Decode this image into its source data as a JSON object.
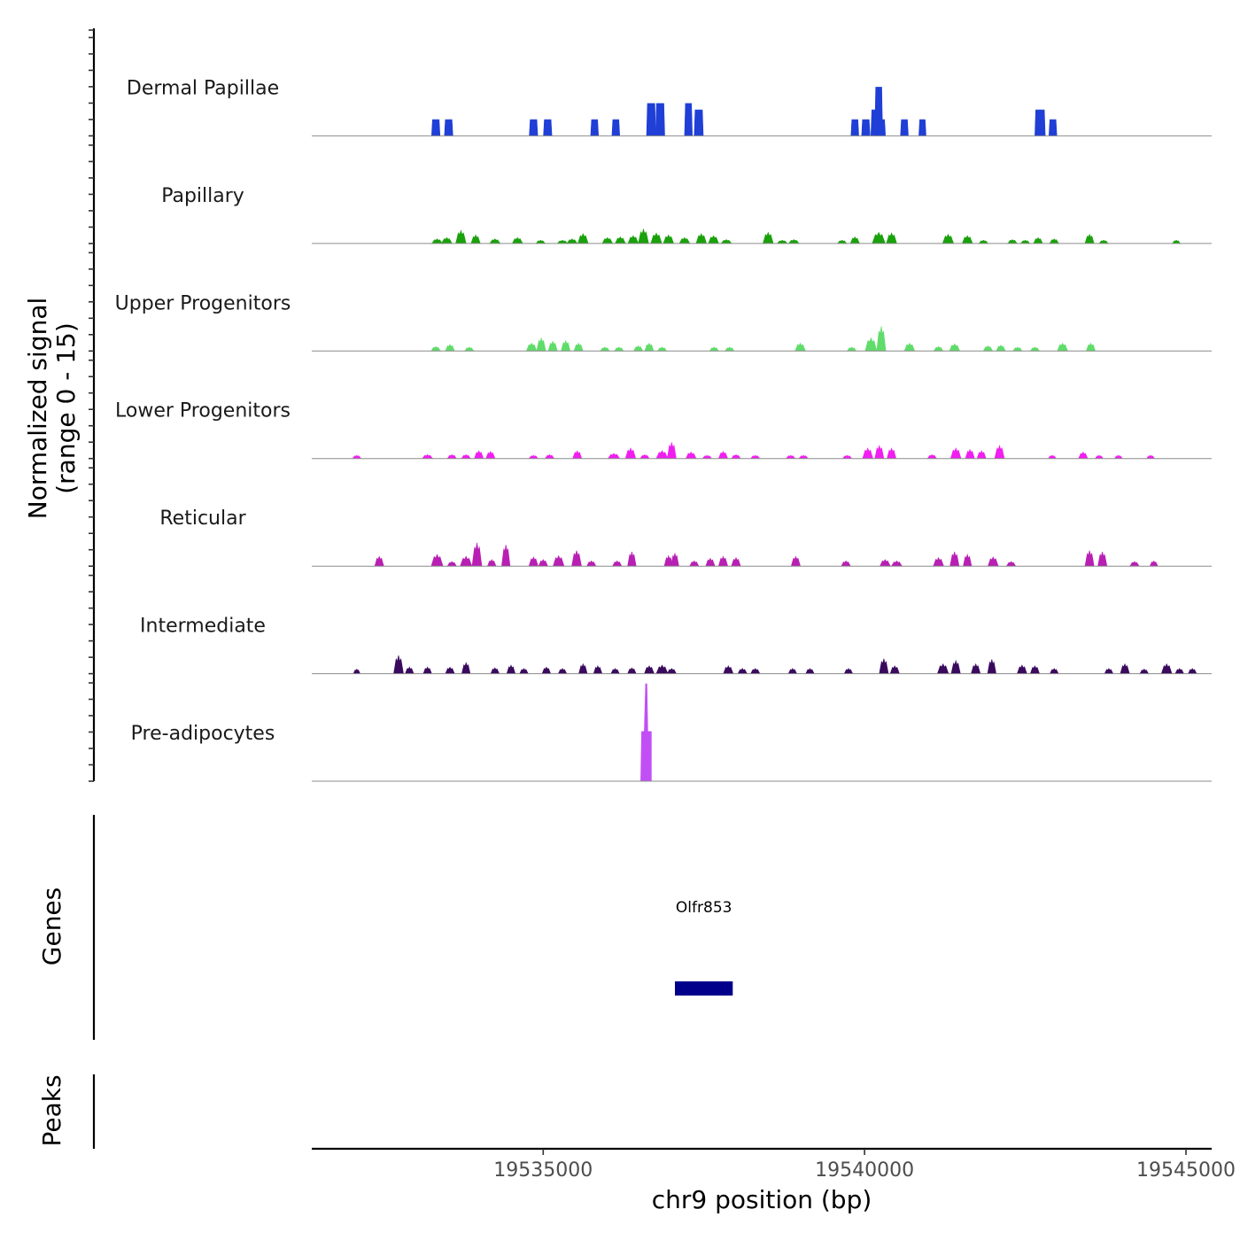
{
  "chart_data": {
    "type": "area",
    "title": "",
    "ylabel": "Normalized signal",
    "ylabel_range": "(range 0 - 15)",
    "xlabel": "chr9 position (bp)",
    "ylim": [
      0,
      15
    ],
    "xlim": [
      19531400,
      19545400
    ],
    "x_ticks": [
      {
        "value": 19535000,
        "label": "19535000"
      },
      {
        "value": 19540000,
        "label": "19540000"
      },
      {
        "value": 19545000,
        "label": "19545000"
      }
    ],
    "tracks": [
      {
        "name": "Dermal Papillae",
        "color": "#1f3fd6",
        "mode": "blocky",
        "peaks": [
          [
            19533330,
            2.5,
            90
          ],
          [
            19533530,
            2.5,
            90
          ],
          [
            19534850,
            2.5,
            90
          ],
          [
            19535070,
            2.5,
            90
          ],
          [
            19535800,
            2.5,
            80
          ],
          [
            19536130,
            2.5,
            80
          ],
          [
            19536680,
            5,
            100
          ],
          [
            19536820,
            5,
            100
          ],
          [
            19537260,
            5,
            80
          ],
          [
            19537420,
            4,
            100
          ],
          [
            19539850,
            2.5,
            80
          ],
          [
            19540020,
            2.5,
            90
          ],
          [
            19540220,
            7.5,
            80
          ],
          [
            19540150,
            4,
            60
          ],
          [
            19540260,
            2.5,
            90
          ],
          [
            19540620,
            2.5,
            80
          ],
          [
            19540900,
            2.5,
            70
          ],
          [
            19542730,
            4,
            120
          ],
          [
            19542930,
            2.5,
            80
          ]
        ]
      },
      {
        "name": "Papillary",
        "color": "#1aa10c",
        "mode": "smooth",
        "peaks": [
          [
            19533350,
            0.7,
            120
          ],
          [
            19533500,
            0.9,
            120
          ],
          [
            19533720,
            2,
            120
          ],
          [
            19533950,
            1.3,
            100
          ],
          [
            19534250,
            0.7,
            120
          ],
          [
            19534600,
            0.9,
            120
          ],
          [
            19534960,
            0.5,
            100
          ],
          [
            19535300,
            0.5,
            120
          ],
          [
            19535450,
            0.7,
            120
          ],
          [
            19535620,
            1.5,
            120
          ],
          [
            19536000,
            0.9,
            120
          ],
          [
            19536200,
            1,
            120
          ],
          [
            19536400,
            1.2,
            120
          ],
          [
            19536560,
            2.2,
            120
          ],
          [
            19536760,
            1.6,
            130
          ],
          [
            19536950,
            1.3,
            120
          ],
          [
            19537200,
            0.9,
            120
          ],
          [
            19537460,
            1.5,
            120
          ],
          [
            19537650,
            1.2,
            120
          ],
          [
            19537850,
            0.6,
            120
          ],
          [
            19538500,
            1.7,
            120
          ],
          [
            19538720,
            0.5,
            120
          ],
          [
            19538900,
            0.6,
            120
          ],
          [
            19539650,
            0.5,
            100
          ],
          [
            19539850,
            1,
            100
          ],
          [
            19540220,
            1.7,
            160
          ],
          [
            19540420,
            1.6,
            120
          ],
          [
            19541300,
            1.4,
            130
          ],
          [
            19541600,
            1.2,
            120
          ],
          [
            19541850,
            0.5,
            100
          ],
          [
            19542300,
            0.6,
            100
          ],
          [
            19542500,
            0.5,
            100
          ],
          [
            19542700,
            0.9,
            100
          ],
          [
            19542950,
            0.7,
            100
          ],
          [
            19543500,
            1.4,
            100
          ],
          [
            19543720,
            0.5,
            100
          ],
          [
            19544850,
            0.5,
            80
          ]
        ]
      },
      {
        "name": "Upper Progenitors",
        "color": "#5fdc6a",
        "mode": "smooth",
        "peaks": [
          [
            19533330,
            0.7,
            100
          ],
          [
            19533550,
            1,
            100
          ],
          [
            19533850,
            0.6,
            100
          ],
          [
            19534820,
            1.2,
            120
          ],
          [
            19534970,
            2,
            100
          ],
          [
            19535150,
            1.5,
            100
          ],
          [
            19535350,
            1.6,
            100
          ],
          [
            19535550,
            1.2,
            100
          ],
          [
            19535960,
            0.6,
            100
          ],
          [
            19536180,
            0.6,
            100
          ],
          [
            19536480,
            0.8,
            100
          ],
          [
            19536650,
            1.2,
            100
          ],
          [
            19536850,
            0.6,
            100
          ],
          [
            19537660,
            0.6,
            100
          ],
          [
            19537900,
            0.6,
            100
          ],
          [
            19539000,
            1.2,
            120
          ],
          [
            19539800,
            0.6,
            100
          ],
          [
            19540100,
            2,
            140
          ],
          [
            19540260,
            3.8,
            100
          ],
          [
            19540700,
            1.2,
            120
          ],
          [
            19541150,
            0.7,
            100
          ],
          [
            19541400,
            1.1,
            120
          ],
          [
            19541920,
            0.8,
            100
          ],
          [
            19542120,
            0.9,
            100
          ],
          [
            19542380,
            0.6,
            100
          ],
          [
            19542650,
            0.6,
            100
          ],
          [
            19543080,
            1.2,
            120
          ],
          [
            19543520,
            1.2,
            100
          ]
        ]
      },
      {
        "name": "Lower Progenitors",
        "color": "#f01ff0",
        "mode": "smooth",
        "peaks": [
          [
            19532100,
            0.5,
            90
          ],
          [
            19533200,
            0.6,
            120
          ],
          [
            19533580,
            0.6,
            100
          ],
          [
            19533800,
            0.6,
            100
          ],
          [
            19534000,
            1.2,
            100
          ],
          [
            19534180,
            1.1,
            100
          ],
          [
            19534850,
            0.5,
            100
          ],
          [
            19535100,
            0.6,
            100
          ],
          [
            19535530,
            1.2,
            100
          ],
          [
            19536100,
            0.8,
            140
          ],
          [
            19536360,
            1.6,
            120
          ],
          [
            19536580,
            0.6,
            100
          ],
          [
            19536850,
            1.2,
            140
          ],
          [
            19537000,
            2.5,
            100
          ],
          [
            19537300,
            1,
            120
          ],
          [
            19537550,
            0.5,
            100
          ],
          [
            19537800,
            1.1,
            100
          ],
          [
            19538000,
            0.6,
            100
          ],
          [
            19538300,
            0.5,
            100
          ],
          [
            19538850,
            0.5,
            100
          ],
          [
            19539050,
            0.5,
            100
          ],
          [
            19539730,
            0.5,
            100
          ],
          [
            19540050,
            1.6,
            120
          ],
          [
            19540230,
            2,
            100
          ],
          [
            19540420,
            1.6,
            100
          ],
          [
            19541050,
            0.6,
            100
          ],
          [
            19541420,
            1.6,
            120
          ],
          [
            19541640,
            1.4,
            100
          ],
          [
            19541820,
            1.2,
            100
          ],
          [
            19542100,
            2,
            110
          ],
          [
            19542920,
            0.5,
            80
          ],
          [
            19543400,
            1,
            100
          ],
          [
            19543650,
            0.5,
            80
          ],
          [
            19543950,
            0.5,
            80
          ],
          [
            19544450,
            0.5,
            80
          ]
        ]
      },
      {
        "name": "Reticular",
        "color": "#b81fb3",
        "mode": "smooth",
        "peaks": [
          [
            19532450,
            1.5,
            100
          ],
          [
            19533350,
            1.8,
            140
          ],
          [
            19533580,
            0.7,
            100
          ],
          [
            19533800,
            1.5,
            140
          ],
          [
            19533970,
            3.6,
            110
          ],
          [
            19534200,
            1,
            90
          ],
          [
            19534420,
            3.3,
            90
          ],
          [
            19534850,
            1.4,
            100
          ],
          [
            19535000,
            1,
            100
          ],
          [
            19535240,
            1.6,
            130
          ],
          [
            19535520,
            2.4,
            110
          ],
          [
            19535750,
            0.8,
            100
          ],
          [
            19536150,
            0.8,
            100
          ],
          [
            19536380,
            2.2,
            90
          ],
          [
            19536950,
            1.6,
            90
          ],
          [
            19537050,
            2,
            80
          ],
          [
            19537350,
            0.8,
            100
          ],
          [
            19537600,
            1.2,
            100
          ],
          [
            19537800,
            1.5,
            100
          ],
          [
            19538000,
            1.3,
            100
          ],
          [
            19538930,
            1.5,
            100
          ],
          [
            19539710,
            0.8,
            100
          ],
          [
            19540320,
            1,
            120
          ],
          [
            19540500,
            0.8,
            120
          ],
          [
            19541150,
            1.3,
            120
          ],
          [
            19541400,
            2.2,
            100
          ],
          [
            19541600,
            1.8,
            90
          ],
          [
            19542000,
            1.4,
            120
          ],
          [
            19542280,
            0.7,
            100
          ],
          [
            19543500,
            2.4,
            100
          ],
          [
            19543700,
            2.2,
            100
          ],
          [
            19544200,
            0.7,
            100
          ],
          [
            19544500,
            0.8,
            80
          ]
        ]
      },
      {
        "name": "Intermediate",
        "color": "#3a0a5e",
        "mode": "smooth",
        "peaks": [
          [
            19532100,
            0.7,
            60
          ],
          [
            19532750,
            2.8,
            110
          ],
          [
            19532920,
            1,
            90
          ],
          [
            19533200,
            1,
            90
          ],
          [
            19533550,
            1,
            100
          ],
          [
            19533800,
            1.7,
            90
          ],
          [
            19534250,
            0.9,
            90
          ],
          [
            19534500,
            1.3,
            90
          ],
          [
            19534700,
            0.8,
            90
          ],
          [
            19535050,
            1,
            90
          ],
          [
            19535300,
            0.8,
            90
          ],
          [
            19535620,
            1.5,
            90
          ],
          [
            19535850,
            1.2,
            90
          ],
          [
            19536120,
            0.8,
            90
          ],
          [
            19536380,
            0.9,
            90
          ],
          [
            19536650,
            1.2,
            110
          ],
          [
            19536850,
            1.3,
            140
          ],
          [
            19537000,
            0.8,
            100
          ],
          [
            19537880,
            1.2,
            110
          ],
          [
            19538100,
            0.8,
            100
          ],
          [
            19538300,
            0.8,
            100
          ],
          [
            19538880,
            0.8,
            90
          ],
          [
            19539150,
            0.8,
            90
          ],
          [
            19539750,
            0.8,
            90
          ],
          [
            19540300,
            2.3,
            100
          ],
          [
            19540470,
            1.2,
            100
          ],
          [
            19541220,
            1.5,
            130
          ],
          [
            19541420,
            2,
            100
          ],
          [
            19541730,
            1.5,
            100
          ],
          [
            19541980,
            2.2,
            90
          ],
          [
            19542450,
            1.3,
            110
          ],
          [
            19542650,
            1.2,
            100
          ],
          [
            19542950,
            0.8,
            90
          ],
          [
            19543800,
            0.8,
            90
          ],
          [
            19544050,
            1.5,
            100
          ],
          [
            19544350,
            0.7,
            90
          ],
          [
            19544700,
            1.5,
            120
          ],
          [
            19544900,
            0.8,
            90
          ],
          [
            19545100,
            0.8,
            90
          ]
        ]
      },
      {
        "name": "Pre-adipocytes",
        "color": "#c24ff5",
        "mode": "spike",
        "peaks": [
          [
            19536600,
            15,
            80
          ]
        ]
      }
    ],
    "genes": {
      "label": "Genes",
      "items": [
        {
          "name": "Olfr853",
          "start": 19537050,
          "end": 19537950,
          "color": "#00008b"
        }
      ]
    },
    "peaks_track": {
      "label": "Peaks",
      "items": []
    }
  }
}
